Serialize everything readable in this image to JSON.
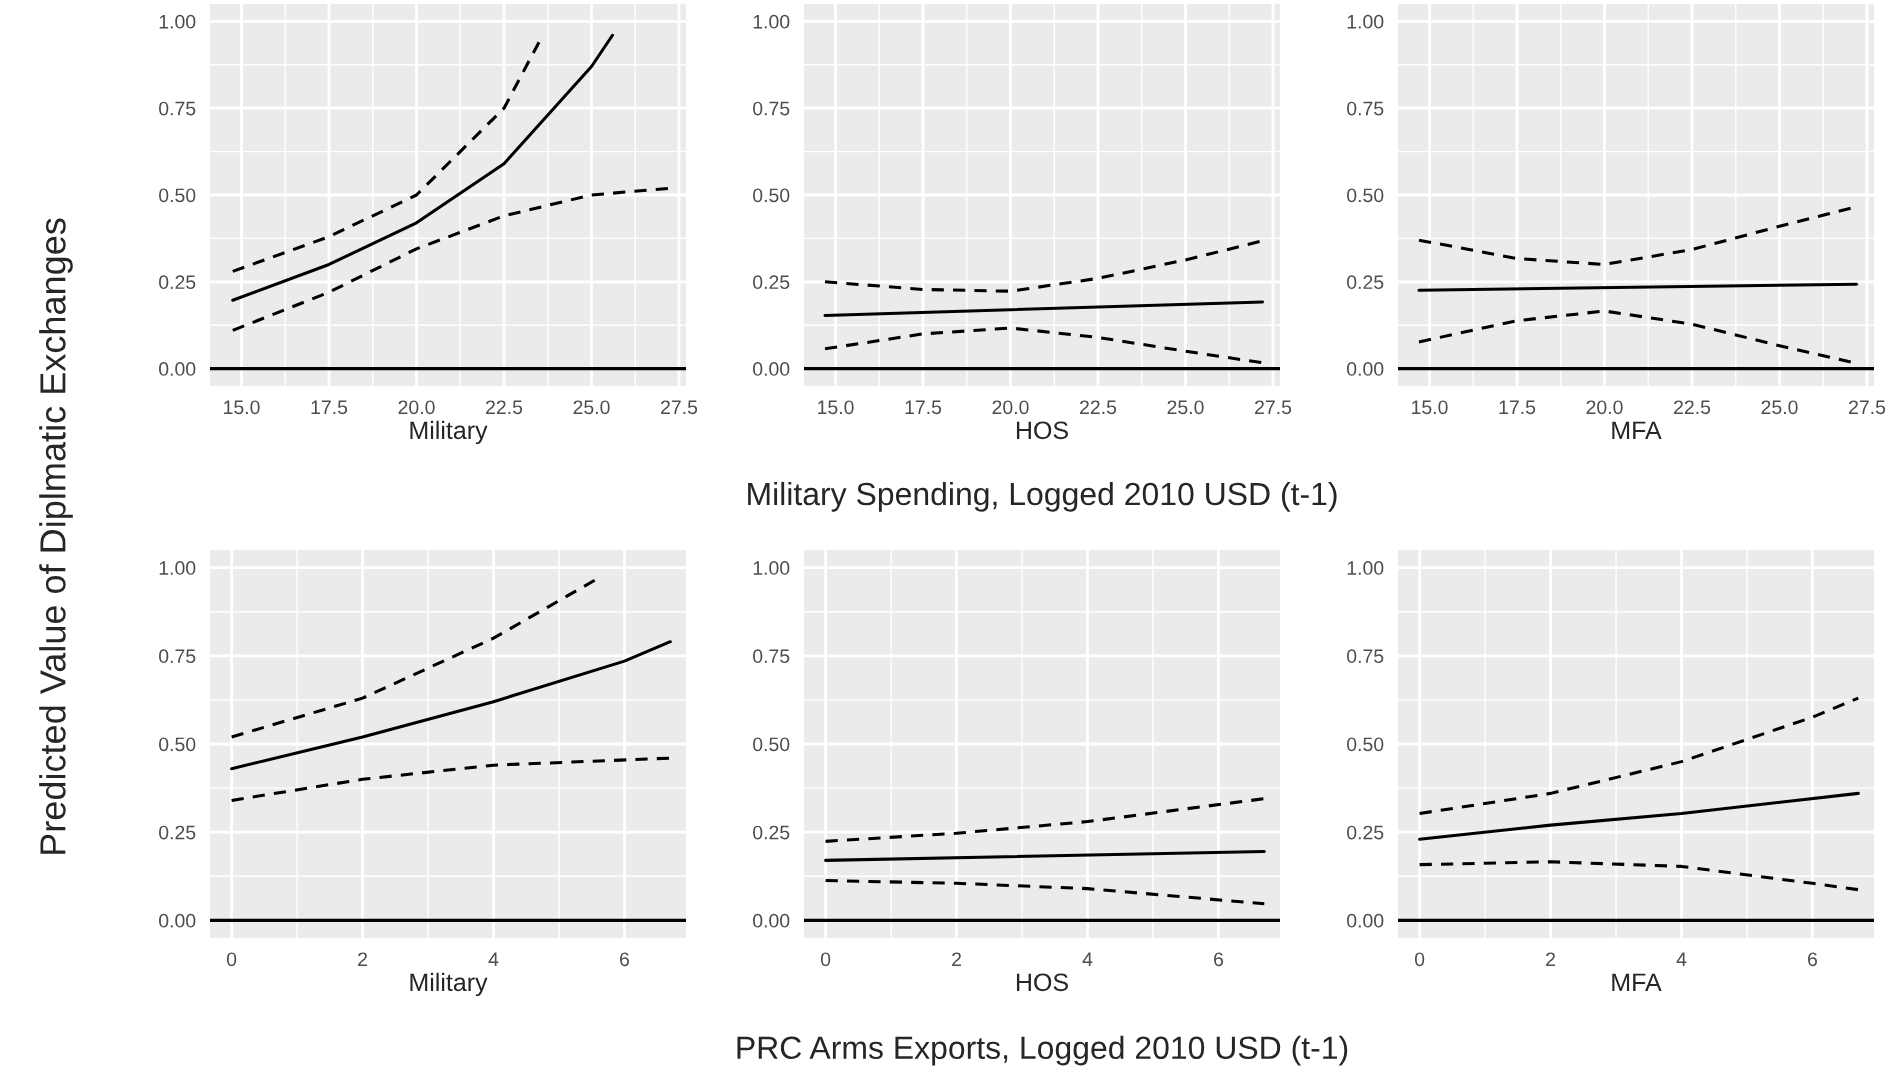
{
  "chart_data": [
    {
      "type": "line",
      "xlabel": "Military",
      "ylabel": "Predicted Value of Diplmatic Exchanges",
      "xlim": [
        14.1,
        27.7
      ],
      "ylim": [
        -0.05,
        1.05
      ],
      "xticks": [
        {
          "value": 15,
          "label": "15.0"
        },
        {
          "value": 17.5,
          "label": "17.5"
        },
        {
          "value": 20,
          "label": "20.0"
        },
        {
          "value": 22.5,
          "label": "22.5"
        },
        {
          "value": 25,
          "label": "25.0"
        },
        {
          "value": 27.5,
          "label": "27.5"
        }
      ],
      "yticks": [
        {
          "value": 0,
          "label": "0.00"
        },
        {
          "value": 0.25,
          "label": "0.25"
        },
        {
          "value": 0.5,
          "label": "0.50"
        },
        {
          "value": 0.75,
          "label": "0.75"
        },
        {
          "value": 1,
          "label": "1.00"
        }
      ],
      "grid": true,
      "ref_lines": [
        {
          "axis": "y",
          "value": 0,
          "color": "#000000",
          "line_style": "solid"
        }
      ],
      "series": [
        {
          "color": "#000000",
          "line_style": "solid",
          "x": [
            14.75,
            17.5,
            20,
            22.5,
            25,
            25.6
          ],
          "values": [
            0.197,
            0.3,
            0.42,
            0.59,
            0.87,
            0.96
          ]
        },
        {
          "color": "#000000",
          "line_style": "dashed",
          "x": [
            14.75,
            17.5,
            20,
            22.5,
            23.5
          ],
          "values": [
            0.28,
            0.38,
            0.5,
            0.75,
            0.94
          ]
        },
        {
          "color": "#000000",
          "line_style": "dashed",
          "x": [
            14.75,
            17.5,
            20,
            22.5,
            25,
            27.3
          ],
          "values": [
            0.11,
            0.22,
            0.345,
            0.44,
            0.5,
            0.52
          ]
        }
      ]
    },
    {
      "type": "line",
      "xlabel": "HOS",
      "xlim": [
        14.1,
        27.7
      ],
      "ylim": [
        -0.05,
        1.05
      ],
      "xticks": [
        {
          "value": 15,
          "label": "15.0"
        },
        {
          "value": 17.5,
          "label": "17.5"
        },
        {
          "value": 20,
          "label": "20.0"
        },
        {
          "value": 22.5,
          "label": "22.5"
        },
        {
          "value": 25,
          "label": "25.0"
        },
        {
          "value": 27.5,
          "label": "27.5"
        }
      ],
      "yticks": [
        {
          "value": 0,
          "label": "0.00"
        },
        {
          "value": 0.25,
          "label": "0.25"
        },
        {
          "value": 0.5,
          "label": "0.50"
        },
        {
          "value": 0.75,
          "label": "0.75"
        },
        {
          "value": 1,
          "label": "1.00"
        }
      ],
      "grid": true,
      "annotations": [
        "Military Spending, Logged 2010 USD (t-1)"
      ],
      "ref_lines": [
        {
          "axis": "y",
          "value": 0,
          "color": "#000000",
          "line_style": "solid"
        }
      ],
      "series": [
        {
          "color": "#000000",
          "line_style": "solid",
          "x": [
            14.7,
            27.2
          ],
          "values": [
            0.153,
            0.192
          ]
        },
        {
          "color": "#000000",
          "line_style": "dashed",
          "x": [
            14.7,
            17.5,
            20,
            22.5,
            25,
            27.2
          ],
          "values": [
            0.25,
            0.228,
            0.223,
            0.26,
            0.313,
            0.368
          ]
        },
        {
          "color": "#000000",
          "line_style": "dashed",
          "x": [
            14.7,
            17.5,
            20,
            22.5,
            25,
            27.2
          ],
          "values": [
            0.057,
            0.1,
            0.117,
            0.09,
            0.05,
            0.017
          ]
        }
      ]
    },
    {
      "type": "line",
      "xlabel": "MFA",
      "xlim": [
        14.1,
        27.7
      ],
      "ylim": [
        -0.05,
        1.05
      ],
      "xticks": [
        {
          "value": 15,
          "label": "15.0"
        },
        {
          "value": 17.5,
          "label": "17.5"
        },
        {
          "value": 20,
          "label": "20.0"
        },
        {
          "value": 22.5,
          "label": "22.5"
        },
        {
          "value": 25,
          "label": "25.0"
        },
        {
          "value": 27.5,
          "label": "27.5"
        }
      ],
      "yticks": [
        {
          "value": 0,
          "label": "0.00"
        },
        {
          "value": 0.25,
          "label": "0.25"
        },
        {
          "value": 0.5,
          "label": "0.50"
        },
        {
          "value": 0.75,
          "label": "0.75"
        },
        {
          "value": 1,
          "label": "1.00"
        }
      ],
      "grid": true,
      "ref_lines": [
        {
          "axis": "y",
          "value": 0,
          "color": "#000000",
          "line_style": "solid"
        }
      ],
      "series": [
        {
          "color": "#000000",
          "line_style": "solid",
          "x": [
            14.7,
            27.2
          ],
          "values": [
            0.226,
            0.243
          ]
        },
        {
          "color": "#000000",
          "line_style": "dashed",
          "x": [
            14.7,
            17.5,
            20,
            22.5,
            25,
            27.2
          ],
          "values": [
            0.37,
            0.317,
            0.3,
            0.343,
            0.41,
            0.466
          ]
        },
        {
          "color": "#000000",
          "line_style": "dashed",
          "x": [
            14.7,
            17.5,
            20,
            22.5,
            25,
            27.2
          ],
          "values": [
            0.077,
            0.138,
            0.166,
            0.128,
            0.066,
            0.015
          ]
        }
      ]
    },
    {
      "type": "line",
      "xlabel": "Military",
      "xlim": [
        -0.33,
        6.94
      ],
      "ylim": [
        -0.05,
        1.05
      ],
      "xticks": [
        0,
        2,
        4,
        6
      ],
      "yticks": [
        {
          "value": 0,
          "label": "0.00"
        },
        {
          "value": 0.25,
          "label": "0.25"
        },
        {
          "value": 0.5,
          "label": "0.50"
        },
        {
          "value": 0.75,
          "label": "0.75"
        },
        {
          "value": 1,
          "label": "1.00"
        }
      ],
      "grid": true,
      "ref_lines": [
        {
          "axis": "y",
          "value": 0,
          "color": "#000000",
          "line_style": "solid"
        }
      ],
      "series": [
        {
          "color": "#000000",
          "line_style": "solid",
          "x": [
            0,
            2,
            4,
            6,
            6.7
          ],
          "values": [
            0.43,
            0.52,
            0.62,
            0.735,
            0.79
          ]
        },
        {
          "color": "#000000",
          "line_style": "dashed",
          "x": [
            0,
            2,
            4,
            5.6
          ],
          "values": [
            0.52,
            0.63,
            0.8,
            0.97
          ]
        },
        {
          "color": "#000000",
          "line_style": "dashed",
          "x": [
            0,
            2,
            4,
            6.7
          ],
          "values": [
            0.34,
            0.4,
            0.44,
            0.46
          ]
        }
      ]
    },
    {
      "type": "line",
      "xlabel": "HOS",
      "xlim": [
        -0.33,
        6.94
      ],
      "ylim": [
        -0.05,
        1.05
      ],
      "xticks": [
        0,
        2,
        4,
        6
      ],
      "yticks": [
        {
          "value": 0,
          "label": "0.00"
        },
        {
          "value": 0.25,
          "label": "0.25"
        },
        {
          "value": 0.5,
          "label": "0.50"
        },
        {
          "value": 0.75,
          "label": "0.75"
        },
        {
          "value": 1,
          "label": "1.00"
        }
      ],
      "grid": true,
      "annotations": [
        "PRC Arms Exports, Logged 2010 USD (t-1)"
      ],
      "ref_lines": [
        {
          "axis": "y",
          "value": 0,
          "color": "#000000",
          "line_style": "solid"
        }
      ],
      "series": [
        {
          "color": "#000000",
          "line_style": "solid",
          "x": [
            0,
            6.7
          ],
          "values": [
            0.17,
            0.195
          ]
        },
        {
          "color": "#000000",
          "line_style": "dashed",
          "x": [
            0,
            2,
            4,
            6.7
          ],
          "values": [
            0.224,
            0.247,
            0.28,
            0.345
          ]
        },
        {
          "color": "#000000",
          "line_style": "dashed",
          "x": [
            0,
            2,
            4,
            6.7
          ],
          "values": [
            0.113,
            0.105,
            0.09,
            0.047
          ]
        }
      ]
    },
    {
      "type": "line",
      "xlabel": "MFA",
      "xlim": [
        -0.33,
        6.94
      ],
      "ylim": [
        -0.05,
        1.05
      ],
      "xticks": [
        0,
        2,
        4,
        6
      ],
      "yticks": [
        {
          "value": 0,
          "label": "0.00"
        },
        {
          "value": 0.25,
          "label": "0.25"
        },
        {
          "value": 0.5,
          "label": "0.50"
        },
        {
          "value": 0.75,
          "label": "0.75"
        },
        {
          "value": 1,
          "label": "1.00"
        }
      ],
      "grid": true,
      "ref_lines": [
        {
          "axis": "y",
          "value": 0,
          "color": "#000000",
          "line_style": "solid"
        }
      ],
      "series": [
        {
          "color": "#000000",
          "line_style": "solid",
          "x": [
            0,
            2,
            4,
            6.7
          ],
          "values": [
            0.23,
            0.27,
            0.303,
            0.36
          ]
        },
        {
          "color": "#000000",
          "line_style": "dashed",
          "x": [
            0,
            2,
            4,
            6,
            6.7
          ],
          "values": [
            0.303,
            0.36,
            0.45,
            0.576,
            0.63
          ]
        },
        {
          "color": "#000000",
          "line_style": "dashed",
          "x": [
            0,
            2,
            4,
            6,
            6.7
          ],
          "values": [
            0.158,
            0.166,
            0.153,
            0.105,
            0.087
          ]
        }
      ]
    }
  ]
}
